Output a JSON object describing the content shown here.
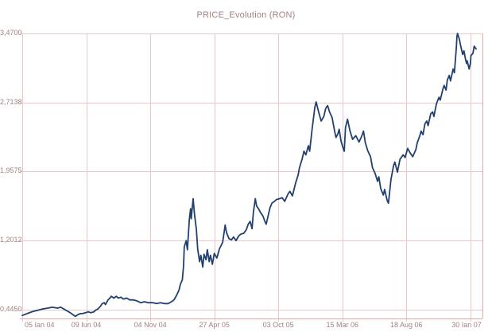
{
  "title": "PRICE_Evolution (RON)",
  "colors": {
    "title_text": "#a38181",
    "axis_label_text": "#a38181",
    "grid_line": "#e8c9c9",
    "frame_line": "#d9abab",
    "series_line": "#21406f",
    "background": "#ffffff"
  },
  "chart_data": {
    "type": "line",
    "title": "PRICE_Evolution (RON)",
    "currency": "RON",
    "legend": false,
    "grid": true,
    "y_tick_labels": [
      "3,4700",
      "2,7138",
      "1,9575",
      "1,2012",
      "0,4450"
    ],
    "y_tick_values": [
      3.47,
      2.7138,
      1.9575,
      1.2012,
      0.445
    ],
    "ylim": [
      0.347,
      3.47
    ],
    "x_tick_labels": [
      "05 Ian 04",
      "09 Iun 04",
      "04 Nov 04",
      "27 Apr 05",
      "03 Oct 05",
      "15 Mar 06",
      "18 Aug 06",
      "30 Ian 07"
    ],
    "x_units": "tick-intervals: 0 = 05 Ian 04 ... 7 = 30 Ian 07; data extends to 7.09",
    "xlim": [
      0,
      7.2
    ],
    "series": [
      {
        "name": "PRICE",
        "color": "#21406f",
        "points": [
          [
            0.0,
            0.38
          ],
          [
            0.15,
            0.42
          ],
          [
            0.31,
            0.45
          ],
          [
            0.4,
            0.46
          ],
          [
            0.47,
            0.47
          ],
          [
            0.55,
            0.46
          ],
          [
            0.6,
            0.47
          ],
          [
            0.65,
            0.45
          ],
          [
            0.7,
            0.43
          ],
          [
            0.75,
            0.41
          ],
          [
            0.79,
            0.39
          ],
          [
            0.83,
            0.37
          ],
          [
            0.87,
            0.39
          ],
          [
            0.91,
            0.4
          ],
          [
            0.94,
            0.4
          ],
          [
            0.99,
            0.41
          ],
          [
            1.03,
            0.42
          ],
          [
            1.07,
            0.41
          ],
          [
            1.12,
            0.42
          ],
          [
            1.15,
            0.44
          ],
          [
            1.18,
            0.45
          ],
          [
            1.22,
            0.48
          ],
          [
            1.25,
            0.51
          ],
          [
            1.28,
            0.52
          ],
          [
            1.3,
            0.5
          ],
          [
            1.34,
            0.55
          ],
          [
            1.37,
            0.57
          ],
          [
            1.39,
            0.59
          ],
          [
            1.43,
            0.57
          ],
          [
            1.47,
            0.59
          ],
          [
            1.5,
            0.57
          ],
          [
            1.54,
            0.58
          ],
          [
            1.58,
            0.56
          ],
          [
            1.63,
            0.57
          ],
          [
            1.68,
            0.55
          ],
          [
            1.74,
            0.55
          ],
          [
            1.79,
            0.54
          ],
          [
            1.85,
            0.52
          ],
          [
            1.91,
            0.53
          ],
          [
            1.97,
            0.52
          ],
          [
            2.04,
            0.52
          ],
          [
            2.1,
            0.51
          ],
          [
            2.16,
            0.52
          ],
          [
            2.22,
            0.51
          ],
          [
            2.28,
            0.51
          ],
          [
            2.33,
            0.53
          ],
          [
            2.37,
            0.55
          ],
          [
            2.41,
            0.6
          ],
          [
            2.45,
            0.66
          ],
          [
            2.47,
            0.72
          ],
          [
            2.5,
            0.77
          ],
          [
            2.52,
            0.93
          ],
          [
            2.53,
            1.13
          ],
          [
            2.56,
            1.2
          ],
          [
            2.58,
            1.1
          ],
          [
            2.61,
            1.43
          ],
          [
            2.63,
            1.55
          ],
          [
            2.64,
            1.44
          ],
          [
            2.67,
            1.66
          ],
          [
            2.69,
            1.49
          ],
          [
            2.72,
            1.32
          ],
          [
            2.74,
            1.11
          ],
          [
            2.77,
            0.97
          ],
          [
            2.79,
            1.04
          ],
          [
            2.82,
            0.91
          ],
          [
            2.84,
            1.05
          ],
          [
            2.87,
            0.99
          ],
          [
            2.89,
            1.1
          ],
          [
            2.92,
            0.97
          ],
          [
            2.94,
            1.04
          ],
          [
            2.97,
            0.94
          ],
          [
            3.0,
            1.06
          ],
          [
            3.04,
            1.01
          ],
          [
            3.08,
            1.11
          ],
          [
            3.13,
            1.18
          ],
          [
            3.17,
            1.37
          ],
          [
            3.19,
            1.29
          ],
          [
            3.23,
            1.22
          ],
          [
            3.27,
            1.21
          ],
          [
            3.3,
            1.24
          ],
          [
            3.34,
            1.2
          ],
          [
            3.38,
            1.25
          ],
          [
            3.41,
            1.27
          ],
          [
            3.46,
            1.28
          ],
          [
            3.5,
            1.32
          ],
          [
            3.53,
            1.38
          ],
          [
            3.56,
            1.41
          ],
          [
            3.59,
            1.33
          ],
          [
            3.61,
            1.51
          ],
          [
            3.64,
            1.66
          ],
          [
            3.66,
            1.58
          ],
          [
            3.69,
            1.55
          ],
          [
            3.72,
            1.51
          ],
          [
            3.76,
            1.47
          ],
          [
            3.79,
            1.41
          ],
          [
            3.81,
            1.38
          ],
          [
            3.84,
            1.47
          ],
          [
            3.87,
            1.56
          ],
          [
            3.9,
            1.61
          ],
          [
            3.94,
            1.63
          ],
          [
            3.97,
            1.65
          ],
          [
            4.02,
            1.66
          ],
          [
            4.06,
            1.67
          ],
          [
            4.1,
            1.63
          ],
          [
            4.15,
            1.71
          ],
          [
            4.18,
            1.74
          ],
          [
            4.22,
            1.69
          ],
          [
            4.27,
            1.83
          ],
          [
            4.31,
            1.92
          ],
          [
            4.33,
            2.0
          ],
          [
            4.37,
            2.09
          ],
          [
            4.4,
            2.18
          ],
          [
            4.43,
            2.14
          ],
          [
            4.47,
            2.24
          ],
          [
            4.49,
            2.18
          ],
          [
            4.53,
            2.44
          ],
          [
            4.57,
            2.66
          ],
          [
            4.59,
            2.72
          ],
          [
            4.63,
            2.61
          ],
          [
            4.67,
            2.51
          ],
          [
            4.71,
            2.56
          ],
          [
            4.74,
            2.65
          ],
          [
            4.77,
            2.68
          ],
          [
            4.8,
            2.61
          ],
          [
            4.84,
            2.55
          ],
          [
            4.88,
            2.4
          ],
          [
            4.9,
            2.33
          ],
          [
            4.93,
            2.37
          ],
          [
            4.95,
            2.42
          ],
          [
            4.98,
            2.29
          ],
          [
            5.0,
            2.24
          ],
          [
            5.03,
            2.18
          ],
          [
            5.05,
            2.44
          ],
          [
            5.08,
            2.53
          ],
          [
            5.12,
            2.4
          ],
          [
            5.16,
            2.31
          ],
          [
            5.21,
            2.35
          ],
          [
            5.26,
            2.28
          ],
          [
            5.3,
            2.34
          ],
          [
            5.33,
            2.4
          ],
          [
            5.36,
            2.27
          ],
          [
            5.4,
            2.18
          ],
          [
            5.44,
            2.12
          ],
          [
            5.47,
            2.0
          ],
          [
            5.51,
            1.94
          ],
          [
            5.55,
            1.85
          ],
          [
            5.57,
            1.9
          ],
          [
            5.6,
            1.77
          ],
          [
            5.64,
            1.7
          ],
          [
            5.66,
            1.76
          ],
          [
            5.7,
            1.64
          ],
          [
            5.72,
            1.61
          ],
          [
            5.74,
            1.74
          ],
          [
            5.76,
            1.87
          ],
          [
            5.8,
            2.02
          ],
          [
            5.82,
            2.06
          ],
          [
            5.86,
            1.95
          ],
          [
            5.9,
            2.09
          ],
          [
            5.95,
            2.14
          ],
          [
            5.98,
            2.11
          ],
          [
            6.02,
            2.21
          ],
          [
            6.06,
            2.16
          ],
          [
            6.1,
            2.12
          ],
          [
            6.15,
            2.2
          ],
          [
            6.17,
            2.27
          ],
          [
            6.21,
            2.35
          ],
          [
            6.23,
            2.4
          ],
          [
            6.26,
            2.36
          ],
          [
            6.29,
            2.48
          ],
          [
            6.32,
            2.51
          ],
          [
            6.34,
            2.46
          ],
          [
            6.38,
            2.59
          ],
          [
            6.41,
            2.61
          ],
          [
            6.43,
            2.56
          ],
          [
            6.47,
            2.7
          ],
          [
            6.51,
            2.77
          ],
          [
            6.53,
            2.74
          ],
          [
            6.57,
            2.86
          ],
          [
            6.59,
            2.9
          ],
          [
            6.62,
            2.85
          ],
          [
            6.64,
            2.96
          ],
          [
            6.67,
            3.01
          ],
          [
            6.69,
            2.95
          ],
          [
            6.73,
            3.08
          ],
          [
            6.75,
            3.04
          ],
          [
            6.78,
            3.31
          ],
          [
            6.79,
            3.44
          ],
          [
            6.8,
            3.47
          ],
          [
            6.83,
            3.4
          ],
          [
            6.85,
            3.33
          ],
          [
            6.88,
            3.24
          ],
          [
            6.9,
            3.28
          ],
          [
            6.92,
            3.2
          ],
          [
            6.94,
            3.14
          ],
          [
            6.95,
            3.17
          ],
          [
            6.98,
            3.08
          ],
          [
            7.0,
            3.14
          ],
          [
            7.01,
            3.23
          ],
          [
            7.04,
            3.25
          ],
          [
            7.06,
            3.33
          ],
          [
            7.09,
            3.3
          ]
        ]
      }
    ]
  }
}
